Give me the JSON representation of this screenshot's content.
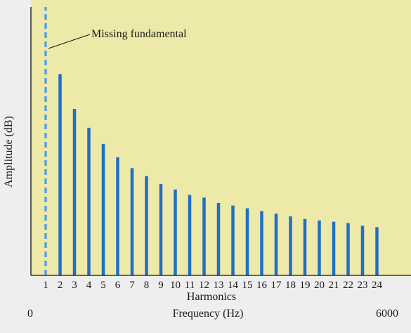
{
  "chart_data": {
    "type": "bar",
    "title": "",
    "xlabel": "Frequency (Hz)",
    "xlabel_secondary": "Harmonics",
    "ylabel": "Amplitude (dB)",
    "x_range_labels": {
      "start": "0",
      "end": "6000"
    },
    "ylim": [
      0,
      100
    ],
    "categories": [
      "1",
      "2",
      "3",
      "4",
      "5",
      "6",
      "7",
      "8",
      "9",
      "10",
      "11",
      "12",
      "13",
      "14",
      "15",
      "16",
      "17",
      "18",
      "19",
      "20",
      "21",
      "22",
      "23",
      "24"
    ],
    "values": [
      100,
      75,
      62,
      55,
      49,
      44,
      40,
      37,
      34,
      32,
      30,
      29,
      27,
      26,
      25,
      24,
      23,
      22,
      21,
      20.5,
      20,
      19.5,
      18.5,
      18
    ],
    "missing": [
      true,
      false,
      false,
      false,
      false,
      false,
      false,
      false,
      false,
      false,
      false,
      false,
      false,
      false,
      false,
      false,
      false,
      false,
      false,
      false,
      false,
      false,
      false,
      false
    ],
    "annotation": {
      "text": "Missing fundamental",
      "target_harmonic": "1"
    },
    "colors": {
      "bar": "#1f6fc4",
      "missing": "#5aa0e0",
      "plot_bg": "#ede9a8",
      "axis": "#111111"
    },
    "grid": false,
    "legend": "none"
  }
}
